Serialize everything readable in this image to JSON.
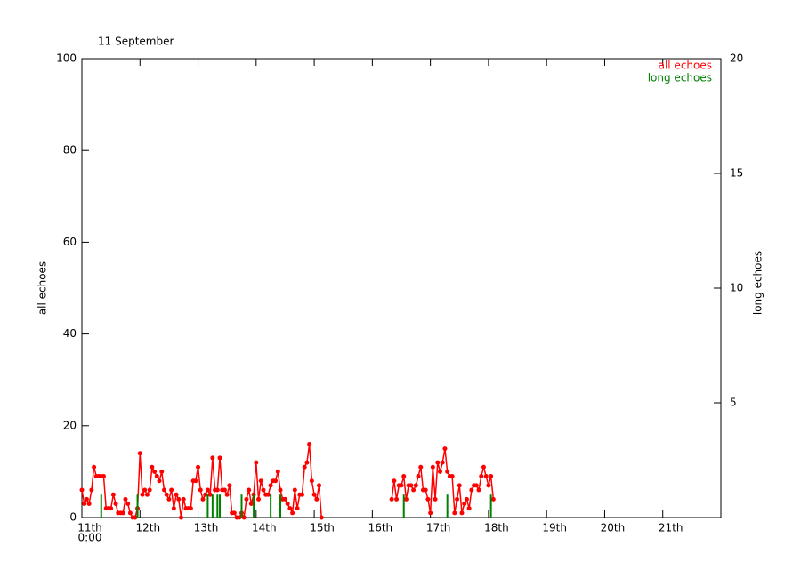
{
  "chart_data": {
    "type": "line",
    "title": "11 September",
    "y_label": "all echoes",
    "y2_label": "long echoes",
    "x_origin_label": "0:00",
    "xlim": [
      0,
      264
    ],
    "xticks": [
      {
        "value": 0,
        "label": "11th"
      },
      {
        "value": 24,
        "label": "12th"
      },
      {
        "value": 48,
        "label": "13th"
      },
      {
        "value": 72,
        "label": "14th"
      },
      {
        "value": 96,
        "label": "15th"
      },
      {
        "value": 120,
        "label": "16th"
      },
      {
        "value": 144,
        "label": "17th"
      },
      {
        "value": 168,
        "label": "18th"
      },
      {
        "value": 192,
        "label": "19th"
      },
      {
        "value": 216,
        "label": "20th"
      },
      {
        "value": 240,
        "label": "21th"
      }
    ],
    "ylim": [
      0,
      100
    ],
    "yticks": [
      0,
      20,
      40,
      60,
      80,
      100
    ],
    "y2lim": [
      0,
      20
    ],
    "y2ticks": [
      5,
      10,
      15,
      20
    ],
    "legend": "top-right",
    "series": [
      {
        "name": "all echoes",
        "color": "#ff0000",
        "style": "line-markers",
        "x": [
          0,
          1,
          2,
          3,
          4,
          5,
          6,
          7,
          8,
          9,
          10,
          11,
          12,
          13,
          14,
          15,
          16,
          17,
          18,
          19,
          20,
          21,
          22,
          23,
          24,
          25,
          26,
          27,
          28,
          29,
          30,
          31,
          32,
          33,
          34,
          35,
          36,
          37,
          38,
          39,
          40,
          41,
          42,
          43,
          44,
          45,
          46,
          47,
          48,
          49,
          50,
          51,
          52,
          53,
          54,
          55,
          56,
          57,
          58,
          59,
          60,
          61,
          62,
          63,
          64,
          65,
          66,
          67,
          68,
          69,
          70,
          71,
          72,
          73,
          74,
          75,
          76,
          77,
          78,
          79,
          80,
          81,
          82,
          83,
          84,
          85,
          86,
          87,
          88,
          89,
          90,
          91,
          92,
          93,
          94,
          95,
          96,
          97,
          98,
          99,
          114,
          128,
          129,
          130,
          131,
          132,
          133,
          134,
          135,
          136,
          137,
          138,
          139,
          140,
          141,
          142,
          143,
          144,
          145,
          146,
          147,
          148,
          149,
          150,
          151,
          152,
          153,
          154,
          155,
          156,
          157,
          158,
          159,
          160,
          161,
          162,
          163,
          164,
          165,
          166,
          167,
          168,
          169,
          170
        ],
        "values": [
          6,
          3,
          4,
          3,
          6,
          11,
          9,
          9,
          9,
          9,
          2,
          2,
          2,
          5,
          3,
          1,
          1,
          1,
          4,
          3,
          1,
          0,
          0,
          2,
          14,
          5,
          6,
          5,
          6,
          11,
          10,
          9,
          8,
          10,
          6,
          5,
          4,
          6,
          2,
          5,
          4,
          0,
          4,
          2,
          2,
          2,
          8,
          8,
          11,
          6,
          4,
          5,
          6,
          5,
          13,
          6,
          6,
          13,
          6,
          6,
          5,
          7,
          1,
          1,
          0,
          0,
          1,
          0,
          4,
          6,
          3,
          5,
          12,
          4,
          8,
          6,
          5,
          5,
          7,
          8,
          8,
          10,
          6,
          4,
          4,
          3,
          2,
          1,
          6,
          2,
          5,
          5,
          11,
          12,
          16,
          8,
          5,
          4,
          7,
          0,
          null,
          4,
          8,
          4,
          7,
          7,
          9,
          4,
          7,
          7,
          6,
          7,
          9,
          11,
          6,
          6,
          4,
          1,
          11,
          4,
          12,
          10,
          12,
          15,
          10,
          9,
          9,
          1,
          4,
          7,
          1,
          3,
          4,
          2,
          6,
          7,
          7,
          6,
          9,
          11,
          9,
          7,
          9,
          4
        ]
      },
      {
        "name": "long echoes",
        "color": "#008000",
        "style": "impulse",
        "axis": "y2",
        "x": [
          8,
          23,
          52,
          54,
          56,
          57,
          66,
          71,
          78,
          82,
          133,
          151,
          169
        ],
        "values": [
          1,
          1,
          1,
          1,
          1,
          1,
          1,
          1,
          1,
          1,
          1,
          1,
          1
        ]
      }
    ]
  }
}
